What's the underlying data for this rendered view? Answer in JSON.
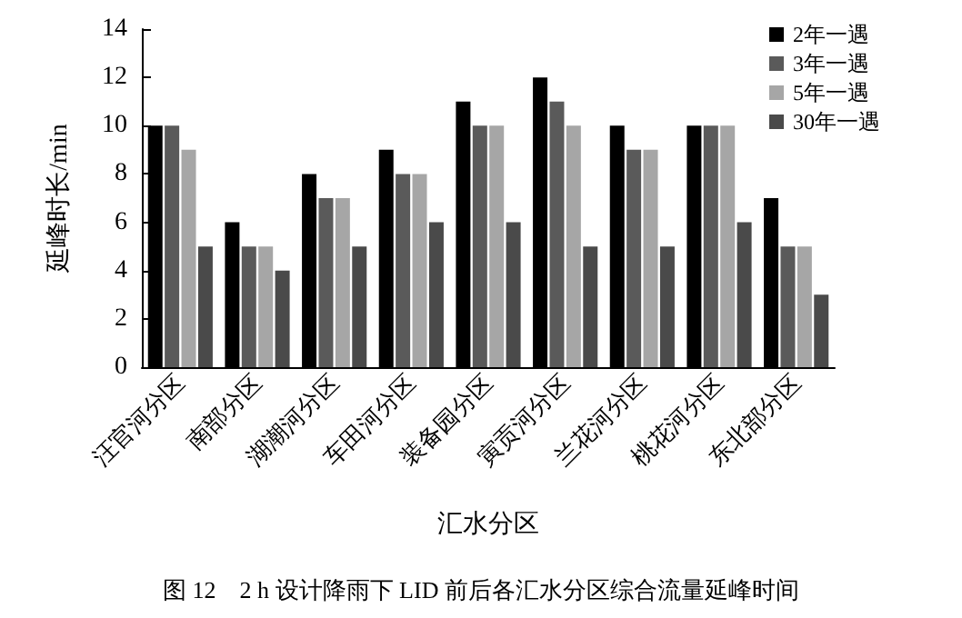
{
  "chart_data": {
    "type": "bar",
    "xlabel": "汇水分区",
    "ylabel": "延峰时长/min",
    "categories": [
      "汪官河分区",
      "南部分区",
      "湖潮河分区",
      "车田河分区",
      "装备园分区",
      "寅贡河分区",
      "兰花河分区",
      "桃花河分区",
      "东北部分区"
    ],
    "series": [
      {
        "name": "2年一遇",
        "color": "#000000",
        "values": [
          10,
          6,
          8,
          9,
          11,
          12,
          10,
          10,
          7
        ]
      },
      {
        "name": "3年一遇",
        "color": "#5a5a5a",
        "values": [
          10,
          5,
          7,
          8,
          10,
          11,
          9,
          10,
          5
        ]
      },
      {
        "name": "5年一遇",
        "color": "#a6a6a6",
        "values": [
          9,
          5,
          7,
          8,
          10,
          10,
          9,
          10,
          5
        ]
      },
      {
        "name": "30年一遇",
        "color": "#4a4a4a",
        "values": [
          5,
          4,
          5,
          6,
          6,
          5,
          5,
          6,
          3
        ]
      }
    ],
    "ylim": [
      0,
      14
    ],
    "yticks": [
      0,
      2,
      4,
      6,
      8,
      10,
      12,
      14
    ],
    "grid": false,
    "legend": "top right",
    "annotations": [
      "图 12　2 h 设计降雨下 LID 前后各汇水分区综合流量延峰时间"
    ]
  }
}
